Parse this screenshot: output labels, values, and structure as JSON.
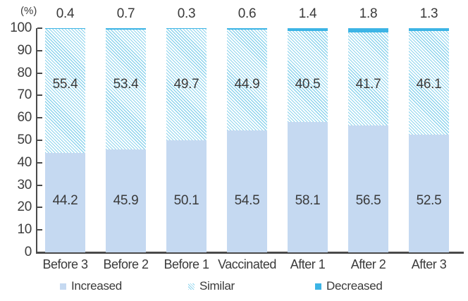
{
  "chart_data": {
    "type": "bar",
    "stacked": true,
    "unit_label": "(%)",
    "categories": [
      "Before 3",
      "Before 2",
      "Before 1",
      "Vaccinated",
      "After 1",
      "After 2",
      "After 3"
    ],
    "series": [
      {
        "name": "Increased",
        "color": "#c5d9f1",
        "pattern": "solid",
        "values": [
          44.2,
          45.9,
          50.1,
          54.5,
          58.1,
          56.5,
          52.5
        ]
      },
      {
        "name": "Similar",
        "color": "#8ed4ed",
        "pattern": "diagonal-hatch",
        "values": [
          55.4,
          53.4,
          49.7,
          44.9,
          40.5,
          41.7,
          46.1
        ]
      },
      {
        "name": "Decreased",
        "color": "#3cb4e5",
        "pattern": "solid",
        "values": [
          0.4,
          0.7,
          0.3,
          0.6,
          1.4,
          1.8,
          1.3
        ]
      }
    ],
    "ylim": [
      0,
      100
    ],
    "yticks": [
      0,
      10,
      20,
      30,
      40,
      50,
      60,
      70,
      80,
      90,
      100
    ],
    "grid": false,
    "legend_position": "bottom",
    "value_label_placement": {
      "Decreased": "above bar",
      "Similar": "inside segment",
      "Increased": "inside segment"
    },
    "axis_color": "#4a4a4a",
    "text_color": "#3a3a3a"
  },
  "legend": {
    "items": [
      {
        "label": "Increased"
      },
      {
        "label": "Similar"
      },
      {
        "label": "Decreased"
      }
    ]
  }
}
